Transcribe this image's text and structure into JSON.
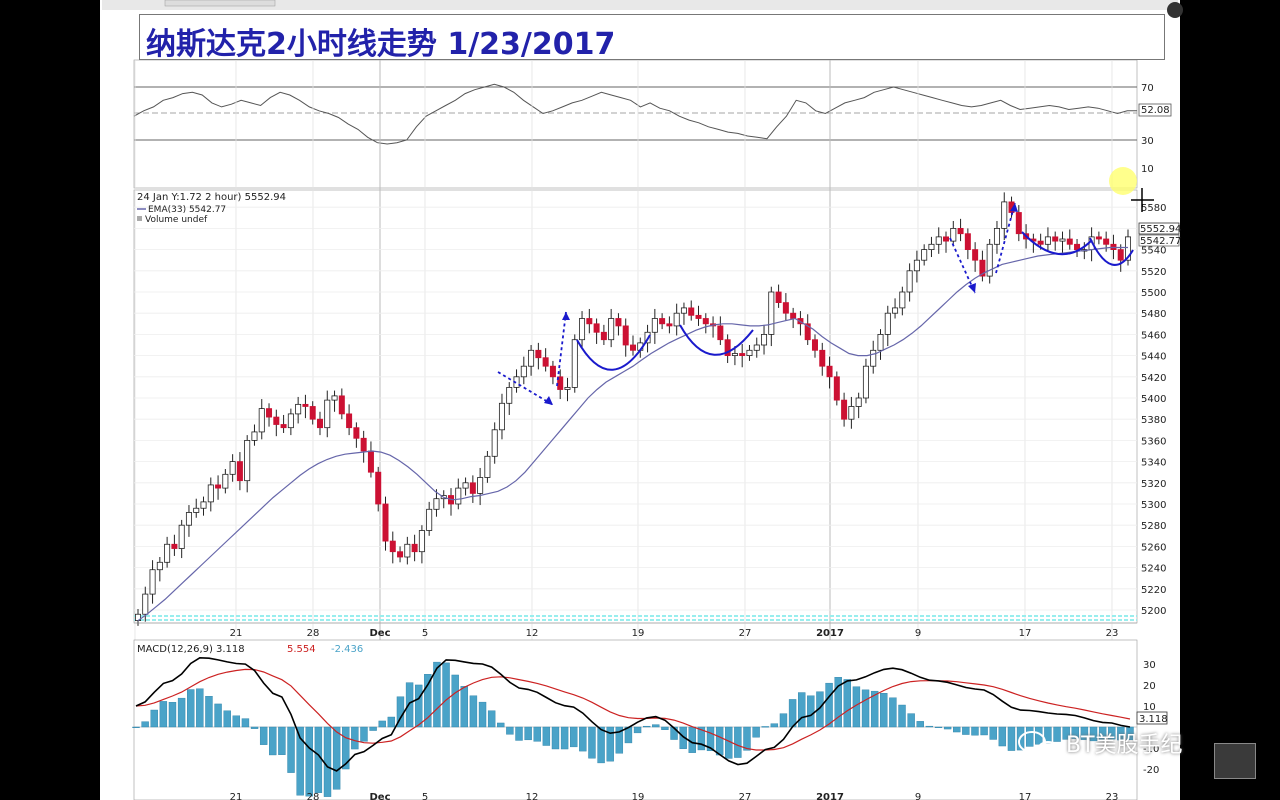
{
  "title": "纳斯达克2小时线走势 1/23/2017",
  "watermark": "BT美股手纪",
  "rsi": {
    "levels": [
      "70",
      "30",
      "10"
    ],
    "value_label": "52.08",
    "values": [
      48,
      52,
      55,
      60,
      62,
      65,
      66,
      64,
      58,
      55,
      57,
      60,
      58,
      56,
      62,
      66,
      64,
      60,
      55,
      52,
      50,
      47,
      42,
      38,
      32,
      28,
      27,
      28,
      30,
      40,
      48,
      52,
      56,
      60,
      65,
      68,
      70,
      72,
      70,
      66,
      60,
      55,
      50,
      52,
      55,
      58,
      60,
      63,
      66,
      64,
      62,
      60,
      55,
      58,
      54,
      52,
      48,
      45,
      43,
      40,
      38,
      36,
      35,
      33,
      32,
      31,
      40,
      48,
      60,
      58,
      52,
      50,
      54,
      58,
      60,
      62,
      66,
      68,
      70,
      68,
      66,
      64,
      62,
      60,
      58,
      56,
      55,
      56,
      58,
      60,
      56,
      53,
      54,
      55,
      56,
      55,
      53,
      54,
      55,
      54,
      52,
      50,
      52,
      52
    ]
  },
  "price_header": {
    "line1": "24 Jan Y:1.72 2 hour) 5552.94",
    "line2": "EMA(33) 5542.77",
    "line3": "Volume undef"
  },
  "price_axis": [
    "5580",
    "5560",
    "5540",
    "5520",
    "5500",
    "5480",
    "5460",
    "5440",
    "5420",
    "5400",
    "5380",
    "5360",
    "5340",
    "5320",
    "5300",
    "5280",
    "5260",
    "5240",
    "5220",
    "5200"
  ],
  "price_tags": [
    "5552.94",
    "5542.77"
  ],
  "x_axis_labels": [
    "21",
    "28",
    "Dec",
    "5",
    "12",
    "19",
    "27",
    "2017",
    "9",
    "17",
    "23"
  ],
  "macd": {
    "header": "MACD(12,26,9)",
    "macd_value": "3.118",
    "signal_value": "5.554",
    "hist_value": "-2.436",
    "axis": [
      "30",
      "20",
      "10",
      "-10",
      "-20"
    ],
    "tag": "3.118"
  },
  "colors": {
    "up_candle": "#ffffff",
    "down_candle": "#cc1133",
    "ema": "#6666aa",
    "annotation": "#1a1acc",
    "macd_line": "#000000",
    "signal_line": "#cc2222",
    "histogram": "#4aa3c8"
  },
  "chart_data": {
    "type": "candlestick",
    "title": "纳斯达克2小时线走势 1/23/2017",
    "series": [
      {
        "name": "",
        "close": [
          5196,
          5215,
          5238,
          5245,
          5262,
          5258,
          5280,
          5292,
          5296,
          5302,
          5318,
          5315,
          5328,
          5340,
          5322,
          5360,
          5368,
          5390,
          5382,
          5375,
          5372,
          5385,
          5394,
          5392,
          5380,
          5372,
          5398,
          5402,
          5385,
          5372,
          5362,
          5350,
          5330,
          5300,
          5265,
          5255,
          5250,
          5262,
          5255,
          5275,
          5295,
          5305,
          5308,
          5300,
          5315,
          5320,
          5310,
          5325,
          5345,
          5370,
          5395,
          5410,
          5420,
          5430,
          5445,
          5438,
          5430,
          5420,
          5408,
          5410,
          5455,
          5475,
          5470,
          5462,
          5455,
          5475,
          5468,
          5450,
          5445,
          5452,
          5462,
          5475,
          5470,
          5468,
          5480,
          5485,
          5478,
          5475,
          5470,
          5468,
          5455,
          5440,
          5442,
          5440,
          5445,
          5450,
          5460,
          5500,
          5490,
          5480,
          5475,
          5470,
          5455,
          5445,
          5430,
          5420,
          5398,
          5380,
          5392,
          5400,
          5430,
          5445,
          5460,
          5480,
          5485,
          5500,
          5520,
          5530,
          5540,
          5545,
          5552,
          5548,
          5560,
          5555,
          5540,
          5530,
          5515,
          5545,
          5560,
          5585,
          5575,
          5555,
          5550,
          5548,
          5545,
          5552,
          5548,
          5550,
          5545,
          5540,
          5540,
          5552,
          5550,
          5545,
          5540,
          5530,
          5552
        ]
      },
      {
        "name": "EMA(33)",
        "values": [
          5190,
          5196,
          5203,
          5210,
          5218,
          5226,
          5234,
          5242,
          5250,
          5258,
          5266,
          5274,
          5282,
          5290,
          5298,
          5306,
          5313,
          5320,
          5327,
          5333,
          5338,
          5342,
          5345,
          5347,
          5348,
          5349,
          5350,
          5349,
          5346,
          5341,
          5335,
          5328,
          5320,
          5312,
          5306,
          5304,
          5305,
          5307,
          5308,
          5310,
          5312,
          5316,
          5322,
          5330,
          5340,
          5350,
          5360,
          5370,
          5380,
          5390,
          5400,
          5408,
          5415,
          5420,
          5425,
          5430,
          5436,
          5442,
          5447,
          5452,
          5456,
          5460,
          5464,
          5467,
          5469,
          5470,
          5470,
          5469,
          5468,
          5468,
          5469,
          5471,
          5473,
          5475,
          5470,
          5465,
          5458,
          5452,
          5447,
          5442,
          5440,
          5440,
          5442,
          5446,
          5450,
          5455,
          5461,
          5468,
          5476,
          5484,
          5492,
          5500,
          5507,
          5513,
          5518,
          5522,
          5526,
          5528,
          5530,
          5532,
          5534,
          5535,
          5536,
          5537,
          5538,
          5539,
          5540,
          5541,
          5542,
          5542,
          5542
        ]
      }
    ],
    "y_axis_ticks": [
      5200,
      5220,
      5240,
      5260,
      5280,
      5300,
      5320,
      5340,
      5360,
      5380,
      5400,
      5420,
      5440,
      5460,
      5480,
      5500,
      5520,
      5540,
      5560,
      5580
    ],
    "x_tick_labels": [
      "21",
      "28",
      "Dec",
      "5",
      "12",
      "19",
      "27",
      "2017",
      "9",
      "17",
      "23"
    ]
  }
}
